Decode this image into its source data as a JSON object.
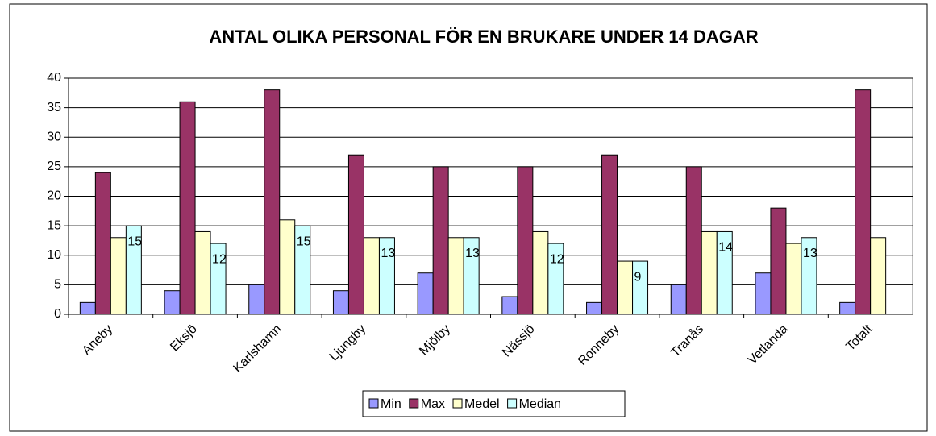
{
  "chart_data": {
    "type": "bar",
    "title": "ANTAL OLIKA  PERSONAL FÖR EN BRUKARE UNDER 14 DAGAR",
    "categories": [
      "Aneby",
      "Eksjö",
      "Karlshamn",
      "Ljungby",
      "Mjölby",
      "Nässjö",
      "Ronneby",
      "Tranås",
      "Vetlanda",
      "Totalt"
    ],
    "series": [
      {
        "name": "Min",
        "color": "#9999ff",
        "values": [
          2,
          4,
          5,
          4,
          7,
          3,
          2,
          5,
          7,
          2
        ]
      },
      {
        "name": "Max",
        "color": "#993366",
        "values": [
          24,
          36,
          38,
          27,
          25,
          25,
          27,
          25,
          18,
          38
        ]
      },
      {
        "name": "Medel",
        "color": "#ffffcc",
        "values": [
          13,
          14,
          16,
          13,
          13,
          14,
          9,
          14,
          12,
          13
        ]
      },
      {
        "name": "Median",
        "color": "#ccffff",
        "values": [
          15,
          12,
          15,
          13,
          13,
          12,
          9,
          14,
          13,
          null
        ],
        "show_labels": true
      }
    ],
    "ylim": [
      0,
      40
    ],
    "yticks": [
      0,
      5,
      10,
      15,
      20,
      25,
      30,
      35,
      40
    ],
    "grid": true,
    "legend": "bottom"
  }
}
